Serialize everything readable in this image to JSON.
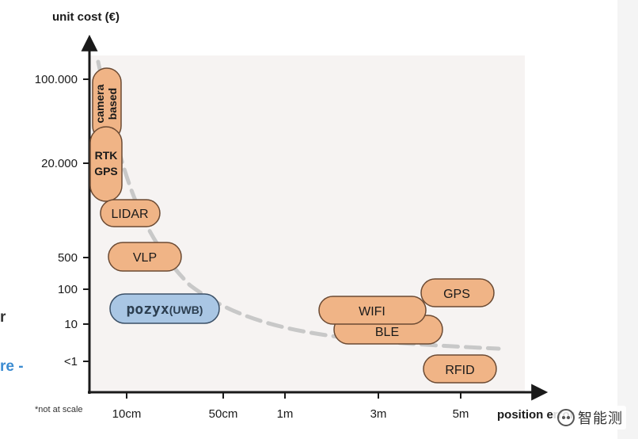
{
  "chart_data": {
    "type": "scatter",
    "title": "",
    "ylabel": "unit cost (€)",
    "xlabel": "position error",
    "footnote": "*not at scale",
    "x_ticks": [
      "10cm",
      "50cm",
      "1m",
      "3m",
      "5m"
    ],
    "y_ticks": [
      "100.000",
      "20.000",
      "500",
      "100",
      "10",
      "<1"
    ],
    "scale_note": "not at scale",
    "trend": "decreasing cost with increasing position error",
    "technologies": [
      {
        "name": "camera based",
        "x_range": [
          "10cm",
          "10cm"
        ],
        "y_range": [
          "20.000",
          "100.000"
        ],
        "color": "#f0b486"
      },
      {
        "name": "RTK GPS",
        "x_range": [
          "10cm",
          "10cm"
        ],
        "y_range": [
          "20.000",
          "20.000"
        ],
        "color": "#f0b486"
      },
      {
        "name": "LIDAR",
        "x_range": [
          "10cm",
          "50cm"
        ],
        "y_range": [
          "500",
          "20.000"
        ],
        "color": "#f0b486"
      },
      {
        "name": "VLP",
        "x_range": [
          "10cm",
          "50cm"
        ],
        "y_range": [
          "500",
          "500"
        ],
        "color": "#f0b486"
      },
      {
        "name": "pozyx(UWB)",
        "x_range": [
          "10cm",
          "50cm"
        ],
        "y_range": [
          "10",
          "100"
        ],
        "color": "#a9c6e4"
      },
      {
        "name": "WIFI",
        "x_range": [
          "1m",
          "3m"
        ],
        "y_range": [
          "10",
          "100"
        ],
        "color": "#f0b486"
      },
      {
        "name": "BLE",
        "x_range": [
          "1m",
          "5m"
        ],
        "y_range": [
          "10",
          "10"
        ],
        "color": "#f0b486"
      },
      {
        "name": "GPS",
        "x_range": [
          "5m",
          "5m"
        ],
        "y_range": [
          "100",
          "100"
        ],
        "color": "#f0b486"
      },
      {
        "name": "RFID",
        "x_range": [
          "5m",
          "5m"
        ],
        "y_range": [
          "<1",
          "<1"
        ],
        "color": "#f0b486"
      }
    ],
    "grid": false,
    "legend": "none"
  },
  "labels": {
    "camera_line1": "camera",
    "camera_line2": "based",
    "rtk_line1": "RTK",
    "rtk_line2": "GPS",
    "pozyx_brand": "pozyx",
    "pozyx_suffix": "(UWB)"
  },
  "edge_fragments": {
    "left_r": "r",
    "left_re": "re -"
  },
  "watermark": {
    "text": "智能测"
  },
  "colors": {
    "orange_fill": "#f0b486",
    "orange_stroke": "#6b4a33",
    "blue_fill": "#a9c6e4",
    "blue_stroke": "#3a4f66",
    "plot_bg": "#f6f3f2",
    "axis": "#1a1a1a",
    "trend": "#c8c8c8"
  }
}
